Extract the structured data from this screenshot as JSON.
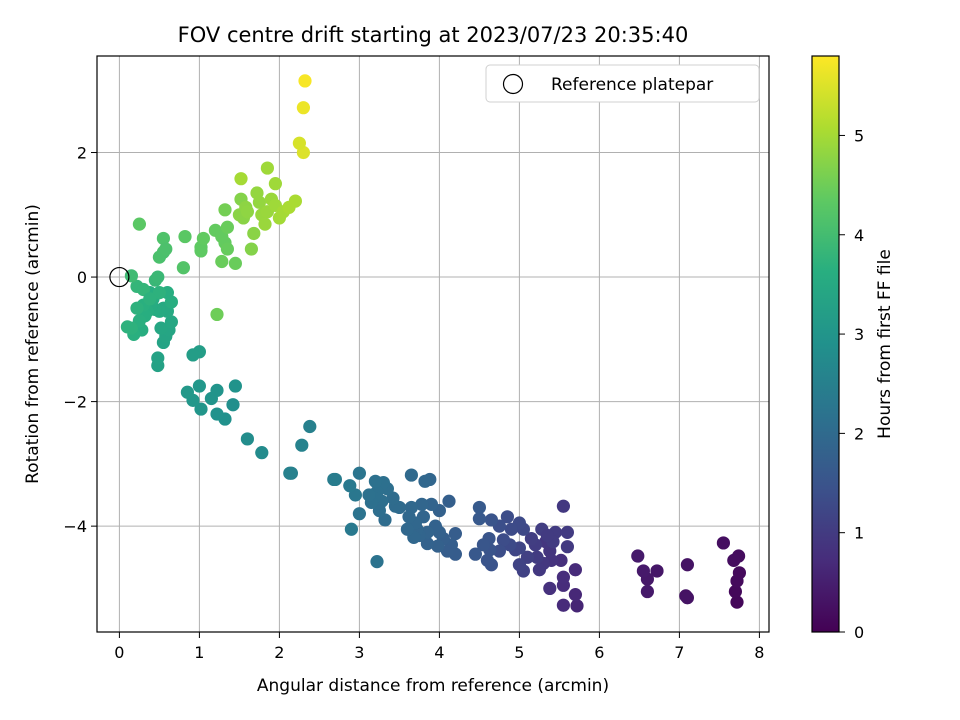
{
  "chart_data": {
    "type": "scatter",
    "title": "FOV centre drift starting at 2023/07/23 20:35:40",
    "xlabel": "Angular distance from reference (arcmin)",
    "ylabel": "Rotation from reference (arcmin)",
    "xlim": [
      -0.28,
      8.12
    ],
    "ylim": [
      -5.7,
      3.55
    ],
    "xticks": [
      0,
      1,
      2,
      3,
      4,
      5,
      6,
      7,
      8
    ],
    "yticks": [
      -4,
      -2,
      0,
      2
    ],
    "grid": true,
    "legend": {
      "label": "Reference platepar",
      "placement": "top-right"
    },
    "reference": {
      "x": 0,
      "y": 0
    },
    "colorbar": {
      "label": "Hours from first FF file",
      "range": [
        0,
        5.8
      ],
      "ticks": [
        0,
        1,
        2,
        3,
        4,
        5
      ],
      "colormap": "viridis"
    },
    "points": [
      [
        7.72,
        -5.22,
        0.1
      ],
      [
        7.7,
        -5.05,
        0.12
      ],
      [
        7.72,
        -4.88,
        0.15
      ],
      [
        7.75,
        -4.75,
        0.15
      ],
      [
        7.74,
        -4.48,
        0.18
      ],
      [
        7.68,
        -4.55,
        0.2
      ],
      [
        7.55,
        -4.27,
        0.22
      ],
      [
        7.1,
        -4.62,
        0.3
      ],
      [
        7.08,
        -5.12,
        0.28
      ],
      [
        7.1,
        -5.15,
        0.3
      ],
      [
        6.72,
        -4.72,
        0.35
      ],
      [
        6.6,
        -4.85,
        0.38
      ],
      [
        6.6,
        -5.05,
        0.4
      ],
      [
        6.55,
        -4.72,
        0.4
      ],
      [
        6.48,
        -4.48,
        0.42
      ],
      [
        5.72,
        -5.28,
        0.6
      ],
      [
        5.7,
        -5.1,
        0.65
      ],
      [
        5.7,
        -4.7,
        0.7
      ],
      [
        5.55,
        -5.27,
        0.7
      ],
      [
        5.55,
        -4.95,
        0.72
      ],
      [
        5.55,
        -4.82,
        0.75
      ],
      [
        5.52,
        -4.55,
        0.78
      ],
      [
        5.55,
        -3.68,
        0.95
      ],
      [
        5.38,
        -5.0,
        0.8
      ],
      [
        5.4,
        -4.55,
        0.85
      ],
      [
        5.38,
        -4.4,
        0.88
      ],
      [
        5.33,
        -4.25,
        0.9
      ],
      [
        5.3,
        -4.6,
        0.92
      ],
      [
        5.25,
        -4.7,
        0.95
      ],
      [
        5.22,
        -4.5,
        1.0
      ],
      [
        5.2,
        -4.3,
        1.02
      ],
      [
        5.15,
        -4.2,
        1.05
      ],
      [
        5.28,
        -4.05,
        1.05
      ],
      [
        5.45,
        -4.1,
        1.0
      ],
      [
        5.6,
        -4.1,
        1.0
      ],
      [
        5.6,
        -4.33,
        0.98
      ],
      [
        5.42,
        -4.25,
        1.0
      ],
      [
        5.35,
        -4.15,
        1.0
      ],
      [
        5.1,
        -4.5,
        1.1
      ],
      [
        5.05,
        -4.72,
        1.12
      ],
      [
        5.0,
        -4.62,
        1.15
      ],
      [
        5.0,
        -4.35,
        1.2
      ],
      [
        5.05,
        -4.05,
        1.25
      ],
      [
        5.0,
        -3.95,
        1.3
      ],
      [
        4.95,
        -4.38,
        1.2
      ],
      [
        4.88,
        -4.3,
        1.3
      ],
      [
        4.85,
        -3.85,
        1.35
      ],
      [
        4.9,
        -4.05,
        1.32
      ],
      [
        4.8,
        -4.22,
        1.35
      ],
      [
        4.75,
        -4.4,
        1.38
      ],
      [
        4.75,
        -4.0,
        1.4
      ],
      [
        4.65,
        -3.9,
        1.5
      ],
      [
        4.62,
        -4.2,
        1.52
      ],
      [
        4.63,
        -4.38,
        1.5
      ],
      [
        4.65,
        -4.62,
        1.48
      ],
      [
        4.6,
        -4.55,
        1.5
      ],
      [
        4.55,
        -4.3,
        1.55
      ],
      [
        4.5,
        -3.88,
        1.6
      ],
      [
        4.5,
        -3.7,
        1.62
      ],
      [
        4.45,
        -4.45,
        1.58
      ],
      [
        4.2,
        -4.12,
        1.7
      ],
      [
        4.2,
        -4.45,
        1.68
      ],
      [
        4.15,
        -4.3,
        1.72
      ],
      [
        4.12,
        -3.6,
        1.75
      ],
      [
        4.1,
        -4.4,
        1.7
      ],
      [
        4.05,
        -4.2,
        1.75
      ],
      [
        4.0,
        -3.75,
        1.8
      ],
      [
        4.0,
        -4.1,
        1.78
      ],
      [
        3.98,
        -4.32,
        1.78
      ],
      [
        3.95,
        -4.0,
        1.82
      ],
      [
        3.9,
        -3.65,
        1.85
      ],
      [
        3.88,
        -3.25,
        1.9
      ],
      [
        3.85,
        -4.28,
        1.82
      ],
      [
        3.85,
        -4.1,
        1.85
      ],
      [
        3.82,
        -3.28,
        1.92
      ],
      [
        3.8,
        -3.85,
        1.88
      ],
      [
        3.78,
        -3.65,
        1.9
      ],
      [
        3.75,
        -4.15,
        1.88
      ],
      [
        3.72,
        -4.05,
        1.9
      ],
      [
        3.7,
        -3.95,
        1.92
      ],
      [
        3.68,
        -4.18,
        1.92
      ],
      [
        3.65,
        -3.7,
        1.95
      ],
      [
        3.65,
        -3.18,
        2.0
      ],
      [
        3.62,
        -3.85,
        1.95
      ],
      [
        3.6,
        -4.05,
        1.95
      ],
      [
        3.5,
        -3.7,
        2.0
      ],
      [
        3.45,
        -3.68,
        2.02
      ],
      [
        3.42,
        -3.55,
        2.05
      ],
      [
        3.35,
        -3.4,
        2.1
      ],
      [
        3.32,
        -3.9,
        2.05
      ],
      [
        3.3,
        -3.3,
        2.12
      ],
      [
        3.28,
        -3.6,
        2.1
      ],
      [
        3.25,
        -3.75,
        2.08
      ],
      [
        3.22,
        -3.45,
        2.12
      ],
      [
        3.2,
        -3.28,
        2.15
      ],
      [
        3.18,
        -3.55,
        2.12
      ],
      [
        3.15,
        -3.62,
        2.12
      ],
      [
        3.12,
        -3.5,
        2.15
      ],
      [
        3.22,
        -4.57,
        2.2
      ],
      [
        3.0,
        -3.8,
        2.2
      ],
      [
        3.0,
        -3.15,
        2.25
      ],
      [
        2.95,
        -3.5,
        2.3
      ],
      [
        2.9,
        -4.05,
        2.35
      ],
      [
        2.88,
        -3.35,
        2.35
      ],
      [
        2.7,
        -3.25,
        2.4
      ],
      [
        2.68,
        -3.25,
        2.42
      ],
      [
        2.38,
        -2.4,
        2.5
      ],
      [
        2.28,
        -2.7,
        2.55
      ],
      [
        2.15,
        -3.15,
        2.5
      ],
      [
        2.13,
        -3.15,
        2.52
      ],
      [
        1.78,
        -2.82,
        2.75
      ],
      [
        1.6,
        -2.6,
        2.8
      ],
      [
        1.42,
        -2.05,
        2.85
      ],
      [
        1.45,
        -1.75,
        2.95
      ],
      [
        1.32,
        -2.28,
        2.9
      ],
      [
        1.22,
        -2.2,
        2.92
      ],
      [
        1.22,
        -1.82,
        2.98
      ],
      [
        1.15,
        -1.95,
        2.98
      ],
      [
        1.02,
        -2.12,
        3.0
      ],
      [
        1.0,
        -1.75,
        3.05
      ],
      [
        0.92,
        -1.98,
        3.05
      ],
      [
        0.85,
        -1.85,
        3.08
      ],
      [
        1.0,
        -1.2,
        3.2
      ],
      [
        0.92,
        -1.25,
        3.2
      ],
      [
        0.48,
        -1.42,
        3.3
      ],
      [
        0.48,
        -1.3,
        3.32
      ],
      [
        0.55,
        -1.05,
        3.35
      ],
      [
        0.58,
        -0.95,
        3.38
      ],
      [
        0.62,
        -0.85,
        3.4
      ],
      [
        0.52,
        -0.82,
        3.42
      ],
      [
        0.65,
        -0.72,
        3.45
      ],
      [
        0.6,
        -0.55,
        3.5
      ],
      [
        0.55,
        -0.5,
        3.5
      ],
      [
        0.5,
        -0.55,
        3.52
      ],
      [
        0.45,
        -0.52,
        3.55
      ],
      [
        0.4,
        -0.45,
        3.55
      ],
      [
        0.42,
        -0.35,
        3.58
      ],
      [
        0.38,
        -0.25,
        3.6
      ],
      [
        0.35,
        -0.55,
        3.6
      ],
      [
        0.32,
        -0.62,
        3.62
      ],
      [
        0.3,
        -0.45,
        3.65
      ],
      [
        0.28,
        -0.85,
        3.6
      ],
      [
        0.25,
        -0.7,
        3.65
      ],
      [
        0.22,
        -0.5,
        3.7
      ],
      [
        0.18,
        -0.92,
        3.65
      ],
      [
        0.15,
        -0.82,
        3.7
      ],
      [
        0.1,
        -0.8,
        3.7
      ],
      [
        0.22,
        -0.15,
        3.8
      ],
      [
        0.3,
        -0.2,
        3.8
      ],
      [
        0.45,
        -0.05,
        3.85
      ],
      [
        0.48,
        0.0,
        3.88
      ],
      [
        0.6,
        -0.25,
        3.6
      ],
      [
        0.65,
        -0.4,
        3.6
      ],
      [
        0.5,
        -0.25,
        3.7
      ],
      [
        0.38,
        -0.35,
        3.7
      ],
      [
        0.15,
        0.02,
        3.95
      ],
      [
        0.55,
        0.62,
        4.15
      ],
      [
        0.55,
        0.4,
        4.1
      ],
      [
        0.5,
        0.32,
        4.1
      ],
      [
        0.58,
        0.45,
        4.12
      ],
      [
        0.25,
        0.85,
        4.3
      ],
      [
        0.8,
        0.15,
        4.2
      ],
      [
        0.82,
        0.65,
        4.3
      ],
      [
        1.02,
        0.48,
        4.35
      ],
      [
        1.05,
        0.62,
        4.38
      ],
      [
        1.02,
        0.42,
        4.35
      ],
      [
        1.2,
        0.75,
        4.4
      ],
      [
        1.28,
        0.65,
        4.4
      ],
      [
        1.32,
        0.55,
        4.4
      ],
      [
        1.35,
        0.45,
        4.42
      ],
      [
        1.28,
        0.25,
        4.45
      ],
      [
        1.45,
        0.22,
        4.45
      ],
      [
        1.32,
        1.08,
        4.55
      ],
      [
        1.22,
        -0.6,
        4.5
      ],
      [
        1.35,
        0.8,
        4.45
      ],
      [
        1.52,
        1.25,
        4.7
      ],
      [
        1.5,
        1.0,
        4.75
      ],
      [
        1.55,
        0.95,
        4.75
      ],
      [
        1.58,
        1.12,
        4.78
      ],
      [
        1.6,
        1.05,
        4.8
      ],
      [
        1.65,
        0.45,
        4.7
      ],
      [
        1.68,
        0.7,
        4.75
      ],
      [
        1.72,
        1.35,
        4.85
      ],
      [
        1.75,
        1.2,
        4.85
      ],
      [
        1.78,
        1.0,
        4.88
      ],
      [
        1.82,
        0.85,
        4.9
      ],
      [
        1.85,
        1.05,
        4.9
      ],
      [
        1.9,
        1.25,
        4.9
      ],
      [
        1.85,
        1.75,
        4.95
      ],
      [
        1.95,
        1.5,
        4.95
      ],
      [
        1.95,
        1.15,
        4.95
      ],
      [
        2.0,
        0.95,
        4.98
      ],
      [
        2.05,
        1.05,
        5.0
      ],
      [
        2.12,
        1.12,
        5.05
      ],
      [
        2.2,
        1.22,
        5.05
      ],
      [
        1.52,
        1.58,
        5.0
      ],
      [
        2.3,
        2.0,
        5.5
      ],
      [
        2.25,
        2.15,
        5.45
      ],
      [
        2.3,
        2.72,
        5.65
      ],
      [
        2.32,
        3.15,
        5.75
      ]
    ]
  }
}
